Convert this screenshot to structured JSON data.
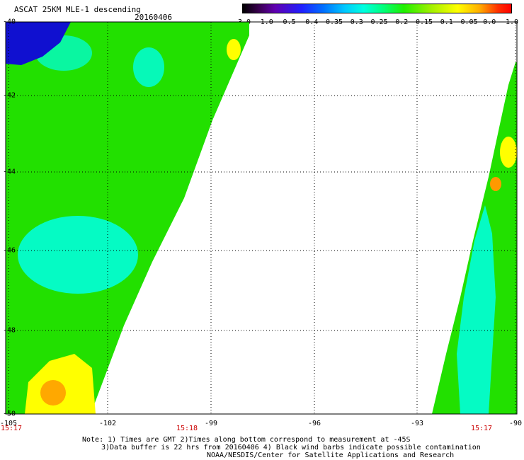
{
  "title": "ASCAT 25KM MLE-1 descending",
  "date": "20160406",
  "colorbar": {
    "labels": [
      "-3.0",
      "-1.0",
      "-0.5",
      "-0.4",
      "-0.35",
      "-0.3",
      "-0.25",
      "-0.2",
      "-0.15",
      "-0.1",
      "-0.05",
      "0.0",
      "1.0"
    ]
  },
  "axes": {
    "lat_ticks": [
      "-40",
      "-42",
      "-44",
      "-46",
      "-48",
      "-50"
    ],
    "lon_ticks": [
      "-105",
      "-102",
      "-99",
      "-96",
      "-93",
      "-90"
    ]
  },
  "times": [
    "15:17",
    "15:18",
    "15:17"
  ],
  "notes": {
    "line1": "Note: 1) Times are GMT 2)Times along bottom correspond to measurement at -45S",
    "line2": "3)Data buffer is 22 hrs from 20160406 4) Black wind barbs indicate possible contamination",
    "line3": "NOAA/NESDIS/Center for Satellite Applications and Research"
  },
  "colors": {
    "green": "#22e000",
    "cyan": "#00ffe6",
    "yellow": "#ffff00",
    "blue": "#1010d0",
    "orange": "#ff9900"
  }
}
